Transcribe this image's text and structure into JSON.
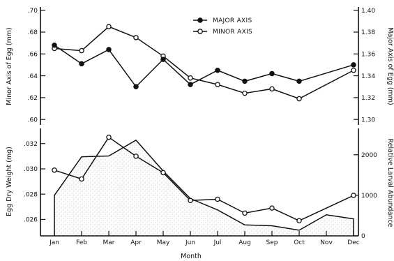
{
  "chart_data": [
    {
      "type": "line",
      "panel": "top",
      "categories": [
        "Jan",
        "Feb",
        "Mar",
        "Apr",
        "May",
        "Jun",
        "Jul",
        "Aug",
        "Sep",
        "Oct",
        "Nov",
        "Dec"
      ],
      "ylabel_left": "Minor Axis of Egg (mm)",
      "ylabel_right": "Major Axis of Egg (mm)",
      "left_ticks": [
        ".60",
        ".62",
        ".64",
        ".66",
        ".68",
        ".70"
      ],
      "right_ticks": [
        "1.30",
        "1.32",
        "1.34",
        "1.36",
        "1.38",
        "1.40"
      ],
      "ylim_left": [
        0.595,
        0.703
      ],
      "ylim_right": [
        1.295,
        1.403
      ],
      "legend": {
        "placement": "top-right",
        "major_label": "MAJOR AXIS",
        "minor_label": "MINOR AXIS"
      },
      "series": [
        {
          "name": "MAJOR AXIS",
          "axis": "right",
          "marker": "filled-circle",
          "x": [
            "Jan",
            "Feb",
            "Mar",
            "Apr",
            "May",
            "Jun",
            "Jul",
            "Aug",
            "Sep",
            "Oct",
            "Dec"
          ],
          "values": [
            1.368,
            1.351,
            1.364,
            1.33,
            1.355,
            1.332,
            1.345,
            1.335,
            1.342,
            1.335,
            1.35
          ]
        },
        {
          "name": "MINOR AXIS",
          "axis": "left",
          "marker": "open-circle",
          "x": [
            "Jan",
            "Feb",
            "Mar",
            "Apr",
            "May",
            "Jun",
            "Jul",
            "Aug",
            "Sep",
            "Oct",
            "Dec"
          ],
          "values": [
            0.665,
            0.663,
            0.685,
            0.675,
            0.658,
            0.638,
            0.632,
            0.624,
            0.628,
            0.619,
            0.645
          ]
        }
      ]
    },
    {
      "type": "line",
      "panel": "bottom",
      "categories": [
        "Jan",
        "Feb",
        "Mar",
        "Apr",
        "May",
        "Jun",
        "Jul",
        "Aug",
        "Sep",
        "Oct",
        "Nov",
        "Dec"
      ],
      "xlabel": "Month",
      "ylabel_left": "Egg Dry Weight (mg)",
      "ylabel_right": "Relative Larval Abundance",
      "left_ticks": [
        ".026",
        ".028",
        ".030",
        ".032"
      ],
      "right_ticks": [
        "0",
        "1000",
        "2000"
      ],
      "ylim_left": [
        0.0247,
        0.0332
      ],
      "ylim_right": [
        0,
        2650
      ],
      "series": [
        {
          "name": "Egg Dry Weight",
          "axis": "left",
          "marker": "open-circle",
          "x": [
            "Jan",
            "Feb",
            "Mar",
            "Apr",
            "May",
            "Jun",
            "Jul",
            "Aug",
            "Sep",
            "Oct",
            "Dec"
          ],
          "values": [
            0.0299,
            0.0292,
            0.0325,
            0.031,
            0.0297,
            0.0275,
            0.0276,
            0.0265,
            0.0269,
            0.0259,
            0.0279
          ]
        },
        {
          "name": "Relative Larval Abundance",
          "axis": "right",
          "style": "stippled-area",
          "x": [
            "Jan",
            "Feb",
            "Mar",
            "Apr",
            "May",
            "Jun",
            "Jul",
            "Aug",
            "Sep",
            "Oct",
            "Nov",
            "Dec"
          ],
          "values": [
            1000,
            1950,
            1970,
            2360,
            1600,
            920,
            640,
            270,
            250,
            140,
            520,
            420
          ]
        }
      ]
    }
  ]
}
